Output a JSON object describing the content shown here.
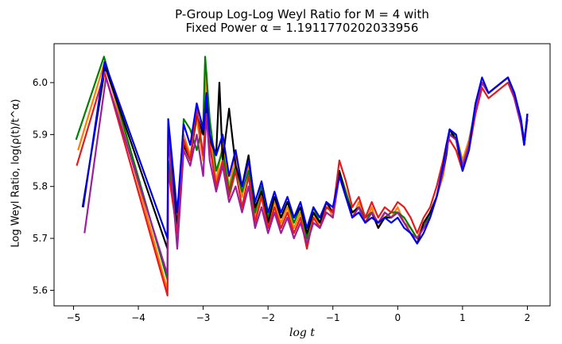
{
  "chart_data": {
    "type": "line",
    "title": "P-Group Log-Log Weyl Ratio for M = 4 with",
    "subtitle": "Fixed Power α = 1.1911770202033956",
    "xlabel": "log t",
    "ylabel": "Log Weyl Ratio, log(ρ(t)/t^α)",
    "xlim": [
      -5.3,
      2.35
    ],
    "ylim": [
      5.57,
      6.075
    ],
    "grid": false,
    "x_ticks": [
      "−5",
      "−4",
      "−3",
      "−2",
      "−1",
      "0",
      "1",
      "2"
    ],
    "y_ticks": [
      "5.6",
      "5.7",
      "5.8",
      "5.9",
      "6.0"
    ],
    "series": [
      {
        "color": "#ff7f00",
        "x": [
          -4.93,
          -4.52,
          -3.55,
          -3.54,
          -3.4,
          -3.3,
          -3.2,
          -3.1,
          -3.0,
          -2.95,
          -2.9,
          -2.8,
          -2.7,
          -2.6,
          -2.5,
          -2.4,
          -2.3,
          -2.2,
          -2.1,
          -2.0,
          -1.9,
          -1.8,
          -1.7,
          -1.6,
          -1.5,
          -1.4,
          -1.3,
          -1.2,
          -1.1,
          -1.0,
          -0.9,
          -0.8,
          -0.7,
          -0.6,
          -0.5,
          -0.4,
          -0.3,
          -0.2,
          -0.1,
          0.0,
          0.1,
          0.2,
          0.3,
          0.4,
          0.5,
          0.6,
          0.7,
          0.75,
          0.8,
          0.9,
          1.0,
          1.1,
          1.2,
          1.3,
          1.4,
          1.5,
          1.6,
          1.7,
          1.8,
          1.9,
          1.95,
          2.0
        ],
        "y": [
          5.87,
          6.04,
          5.6,
          5.85,
          5.7,
          5.9,
          5.86,
          5.93,
          5.85,
          6.02,
          5.9,
          5.81,
          5.88,
          5.8,
          5.86,
          5.78,
          5.84,
          5.74,
          5.79,
          5.73,
          5.77,
          5.73,
          5.76,
          5.72,
          5.75,
          5.69,
          5.75,
          5.72,
          5.77,
          5.74,
          5.82,
          5.78,
          5.74,
          5.77,
          5.73,
          5.76,
          5.72,
          5.75,
          5.74,
          5.76,
          5.73,
          5.72,
          5.7,
          5.73,
          5.74,
          5.78,
          5.82,
          5.86,
          5.91,
          5.9,
          5.85,
          5.89,
          5.95,
          6.0,
          5.98,
          5.99,
          6.0,
          6.01,
          5.97,
          5.92,
          5.88,
          5.94
        ]
      },
      {
        "color": "#008000",
        "x": [
          -4.96,
          -4.53,
          -3.55,
          -3.54,
          -3.4,
          -3.3,
          -3.2,
          -3.1,
          -3.0,
          -2.97,
          -2.9,
          -2.8,
          -2.7,
          -2.6,
          -2.5,
          -2.4,
          -2.3,
          -2.2,
          -2.1,
          -2.0,
          -1.9,
          -1.8,
          -1.7,
          -1.6,
          -1.5,
          -1.4,
          -1.3,
          -1.2,
          -1.1,
          -1.0,
          -0.9,
          -0.8,
          -0.7,
          -0.6,
          -0.5,
          -0.4,
          -0.3,
          -0.2,
          -0.1,
          0.0,
          0.1,
          0.2,
          0.3,
          0.4,
          0.5,
          0.6,
          0.7,
          0.75,
          0.8,
          0.9,
          1.0,
          1.1,
          1.2,
          1.3,
          1.4,
          1.5,
          1.6,
          1.7,
          1.8,
          1.9,
          1.95,
          2.0
        ],
        "y": [
          5.89,
          6.05,
          5.62,
          5.85,
          5.72,
          5.93,
          5.91,
          5.87,
          5.92,
          6.05,
          5.93,
          5.83,
          5.87,
          5.79,
          5.84,
          5.79,
          5.83,
          5.75,
          5.8,
          5.74,
          5.78,
          5.74,
          5.77,
          5.73,
          5.76,
          5.7,
          5.76,
          5.73,
          5.76,
          5.75,
          5.83,
          5.79,
          5.75,
          5.76,
          5.74,
          5.75,
          5.73,
          5.74,
          5.75,
          5.75,
          5.74,
          5.72,
          5.7,
          5.72,
          5.75,
          5.78,
          5.83,
          5.87,
          5.9,
          5.9,
          5.84,
          5.88,
          5.96,
          6.0,
          5.98,
          5.99,
          6.0,
          6.01,
          5.98,
          5.93,
          5.89,
          5.93
        ]
      },
      {
        "color": "#000000",
        "x": [
          -4.86,
          -4.51,
          -3.55,
          -3.54,
          -3.4,
          -3.3,
          -3.2,
          -3.1,
          -3.0,
          -2.95,
          -2.9,
          -2.8,
          -2.75,
          -2.7,
          -2.6,
          -2.5,
          -2.4,
          -2.3,
          -2.2,
          -2.1,
          -2.0,
          -1.9,
          -1.8,
          -1.7,
          -1.6,
          -1.5,
          -1.4,
          -1.3,
          -1.2,
          -1.1,
          -1.0,
          -0.9,
          -0.8,
          -0.7,
          -0.6,
          -0.5,
          -0.4,
          -0.3,
          -0.2,
          -0.1,
          0.0,
          0.1,
          0.2,
          0.3,
          0.4,
          0.5,
          0.6,
          0.7,
          0.75,
          0.8,
          0.9,
          1.0,
          1.1,
          1.2,
          1.3,
          1.4,
          1.5,
          1.6,
          1.7,
          1.8,
          1.9,
          1.95,
          2.0
        ],
        "y": [
          5.76,
          6.03,
          5.68,
          5.92,
          5.72,
          5.88,
          5.85,
          5.94,
          5.9,
          5.96,
          5.89,
          5.86,
          6.0,
          5.85,
          5.95,
          5.84,
          5.8,
          5.86,
          5.76,
          5.79,
          5.73,
          5.78,
          5.74,
          5.77,
          5.74,
          5.76,
          5.71,
          5.75,
          5.73,
          5.77,
          5.75,
          5.83,
          5.78,
          5.75,
          5.76,
          5.73,
          5.75,
          5.72,
          5.74,
          5.74,
          5.75,
          5.73,
          5.71,
          5.69,
          5.73,
          5.75,
          5.78,
          5.83,
          5.86,
          5.91,
          5.89,
          5.83,
          5.88,
          5.95,
          6.0,
          5.98,
          5.99,
          6.0,
          6.01,
          5.98,
          5.93,
          5.88,
          5.94
        ]
      },
      {
        "color": "#e41a1c",
        "x": [
          -4.95,
          -4.52,
          -3.55,
          -3.54,
          -3.4,
          -3.3,
          -3.2,
          -3.1,
          -3.0,
          -2.95,
          -2.9,
          -2.8,
          -2.7,
          -2.6,
          -2.5,
          -2.4,
          -2.3,
          -2.2,
          -2.1,
          -2.0,
          -1.9,
          -1.8,
          -1.7,
          -1.6,
          -1.5,
          -1.4,
          -1.3,
          -1.2,
          -1.1,
          -1.0,
          -0.9,
          -0.8,
          -0.7,
          -0.6,
          -0.5,
          -0.4,
          -0.3,
          -0.2,
          -0.1,
          0.0,
          0.1,
          0.2,
          0.3,
          0.4,
          0.5,
          0.6,
          0.7,
          0.75,
          0.8,
          0.9,
          1.0,
          1.1,
          1.2,
          1.3,
          1.4,
          1.5,
          1.6,
          1.7,
          1.8,
          1.9,
          1.95,
          2.0
        ],
        "y": [
          5.84,
          6.02,
          5.59,
          5.83,
          5.71,
          5.89,
          5.85,
          5.95,
          5.86,
          5.93,
          5.88,
          5.8,
          5.85,
          5.78,
          5.83,
          5.76,
          5.82,
          5.73,
          5.78,
          5.72,
          5.76,
          5.72,
          5.75,
          5.71,
          5.74,
          5.68,
          5.74,
          5.72,
          5.76,
          5.75,
          5.85,
          5.81,
          5.76,
          5.78,
          5.74,
          5.77,
          5.74,
          5.76,
          5.75,
          5.77,
          5.76,
          5.74,
          5.71,
          5.74,
          5.76,
          5.8,
          5.85,
          5.88,
          5.89,
          5.87,
          5.83,
          5.87,
          5.94,
          5.99,
          5.97,
          5.98,
          5.99,
          6.0,
          5.97,
          5.92,
          5.89,
          5.93
        ]
      },
      {
        "color": "#9c1e9c",
        "x": [
          -4.83,
          -4.5,
          -3.55,
          -3.54,
          -3.4,
          -3.3,
          -3.2,
          -3.1,
          -3.0,
          -2.95,
          -2.9,
          -2.8,
          -2.7,
          -2.6,
          -2.5,
          -2.4,
          -2.3,
          -2.2,
          -2.1,
          -2.0,
          -1.9,
          -1.8,
          -1.7,
          -1.6,
          -1.5,
          -1.4,
          -1.3,
          -1.2,
          -1.1,
          -1.0,
          -0.9,
          -0.8,
          -0.7,
          -0.6,
          -0.5,
          -0.4,
          -0.3,
          -0.2,
          -0.1,
          0.0,
          0.1,
          0.2,
          0.3,
          0.4,
          0.5,
          0.6,
          0.7,
          0.75,
          0.8,
          0.9,
          1.0,
          1.1,
          1.2,
          1.3,
          1.4,
          1.5,
          1.6,
          1.7,
          1.8,
          1.9,
          1.95,
          2.0
        ],
        "y": [
          5.71,
          6.01,
          5.63,
          5.9,
          5.68,
          5.87,
          5.84,
          5.9,
          5.82,
          5.94,
          5.85,
          5.79,
          5.84,
          5.77,
          5.8,
          5.75,
          5.8,
          5.72,
          5.76,
          5.71,
          5.75,
          5.71,
          5.74,
          5.7,
          5.73,
          5.69,
          5.73,
          5.72,
          5.75,
          5.74,
          5.82,
          5.78,
          5.74,
          5.76,
          5.73,
          5.75,
          5.73,
          5.75,
          5.74,
          5.75,
          5.73,
          5.71,
          5.7,
          5.72,
          5.74,
          5.78,
          5.83,
          5.87,
          5.9,
          5.89,
          5.84,
          5.88,
          5.95,
          6.0,
          5.98,
          5.99,
          6.0,
          6.01,
          5.97,
          5.92,
          5.88,
          5.93
        ]
      },
      {
        "color": "#0000ee",
        "x": [
          -4.85,
          -4.52,
          -3.55,
          -3.54,
          -3.4,
          -3.3,
          -3.2,
          -3.1,
          -3.0,
          -2.95,
          -2.9,
          -2.8,
          -2.7,
          -2.6,
          -2.5,
          -2.4,
          -2.3,
          -2.2,
          -2.1,
          -2.0,
          -1.9,
          -1.8,
          -1.7,
          -1.6,
          -1.5,
          -1.4,
          -1.3,
          -1.2,
          -1.1,
          -1.0,
          -0.9,
          -0.8,
          -0.7,
          -0.6,
          -0.5,
          -0.4,
          -0.3,
          -0.2,
          -0.1,
          0.0,
          0.1,
          0.2,
          0.3,
          0.4,
          0.5,
          0.6,
          0.7,
          0.75,
          0.8,
          0.9,
          1.0,
          1.1,
          1.2,
          1.3,
          1.4,
          1.5,
          1.6,
          1.7,
          1.8,
          1.9,
          1.95,
          2.0
        ],
        "y": [
          5.76,
          6.04,
          5.7,
          5.93,
          5.75,
          5.92,
          5.88,
          5.96,
          5.91,
          5.98,
          5.9,
          5.86,
          5.9,
          5.82,
          5.87,
          5.8,
          5.85,
          5.77,
          5.81,
          5.75,
          5.79,
          5.75,
          5.78,
          5.74,
          5.77,
          5.72,
          5.76,
          5.74,
          5.77,
          5.76,
          5.82,
          5.78,
          5.74,
          5.75,
          5.73,
          5.74,
          5.73,
          5.74,
          5.73,
          5.74,
          5.72,
          5.71,
          5.69,
          5.71,
          5.74,
          5.78,
          5.84,
          5.88,
          5.91,
          5.9,
          5.83,
          5.87,
          5.96,
          6.01,
          5.98,
          5.99,
          6.0,
          6.01,
          5.98,
          5.93,
          5.88,
          5.94
        ]
      }
    ]
  }
}
